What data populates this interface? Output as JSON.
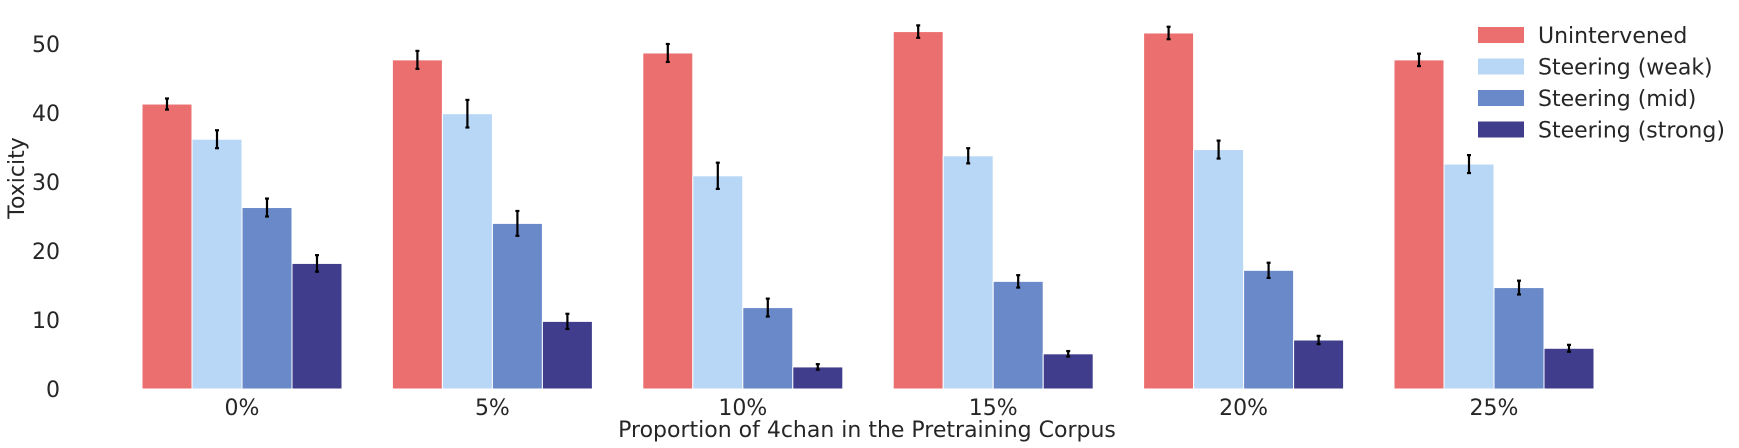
{
  "chart_data": {
    "type": "bar",
    "title": "",
    "xlabel": "Proportion of 4chan in the Pretraining Corpus",
    "ylabel": "Toxicity",
    "ylim": [
      0,
      55
    ],
    "yticks": [
      0,
      10,
      20,
      30,
      40,
      50
    ],
    "grid": false,
    "legend_position": "top-right",
    "categories": [
      "0%",
      "5%",
      "10%",
      "15%",
      "20%",
      "25%"
    ],
    "series": [
      {
        "name": "Unintervened",
        "color": "#ec6f70",
        "values": [
          41.3,
          47.7,
          48.7,
          51.8,
          51.6,
          47.7
        ],
        "errors": [
          0.8,
          1.3,
          1.3,
          0.9,
          0.9,
          0.9
        ]
      },
      {
        "name": "Steering (weak)",
        "color": "#b8d6f5",
        "values": [
          36.2,
          39.9,
          30.9,
          33.8,
          34.7,
          32.6
        ],
        "errors": [
          1.3,
          2.0,
          1.9,
          1.1,
          1.3,
          1.3
        ]
      },
      {
        "name": "Steering (mid)",
        "color": "#6a89c8",
        "values": [
          26.3,
          24.0,
          11.8,
          15.6,
          17.2,
          14.7
        ],
        "errors": [
          1.3,
          1.8,
          1.3,
          0.9,
          1.1,
          1.0
        ]
      },
      {
        "name": "Steering (strong)",
        "color": "#403e8c",
        "values": [
          18.2,
          9.8,
          3.2,
          5.1,
          7.1,
          5.9
        ],
        "errors": [
          1.2,
          1.1,
          0.4,
          0.4,
          0.6,
          0.5
        ]
      }
    ]
  }
}
